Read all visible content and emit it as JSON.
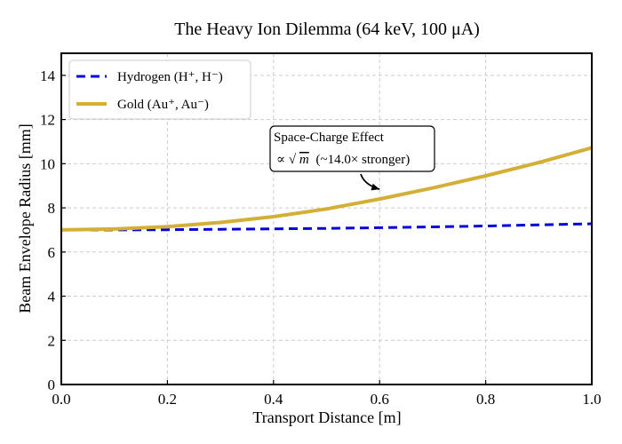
{
  "chart_data": {
    "type": "line",
    "title": "The Heavy Ion Dilemma (64 keV, 100 μA)",
    "xlabel": "Transport Distance [m]",
    "ylabel": "Beam Envelope Radius [mm]",
    "xlim": [
      0.0,
      1.0
    ],
    "ylim": [
      0,
      15
    ],
    "xticks": [
      "0.0",
      "0.2",
      "0.4",
      "0.6",
      "0.8",
      "1.0"
    ],
    "yticks": [
      "0",
      "2",
      "4",
      "6",
      "8",
      "10",
      "12",
      "14"
    ],
    "grid": true,
    "legend_position": "top-left",
    "series": [
      {
        "name": "Hydrogen (H⁺, H⁻)",
        "style": "dashed",
        "color": "#0000dd",
        "x": [
          0.0,
          0.1,
          0.2,
          0.3,
          0.4,
          0.5,
          0.6,
          0.7,
          0.8,
          0.9,
          1.0
        ],
        "y": [
          7.0,
          7.0,
          7.01,
          7.03,
          7.05,
          7.07,
          7.1,
          7.14,
          7.18,
          7.23,
          7.28
        ]
      },
      {
        "name": "Gold (Au⁺, Au⁻)",
        "style": "solid",
        "color": "#d4af37",
        "x": [
          0.0,
          0.1,
          0.2,
          0.3,
          0.4,
          0.5,
          0.6,
          0.7,
          0.8,
          0.9,
          1.0
        ],
        "y": [
          7.0,
          7.04,
          7.15,
          7.34,
          7.6,
          7.95,
          8.4,
          8.9,
          9.45,
          10.05,
          10.72
        ]
      }
    ],
    "annotation": {
      "line1": "Space-Charge Effect",
      "prefix": "∝",
      "sqrt_symbol": "√",
      "sqrt_var": "m",
      "rest": "(~14.0× stronger)",
      "target": {
        "x": 0.6,
        "y": 8.4
      }
    }
  }
}
